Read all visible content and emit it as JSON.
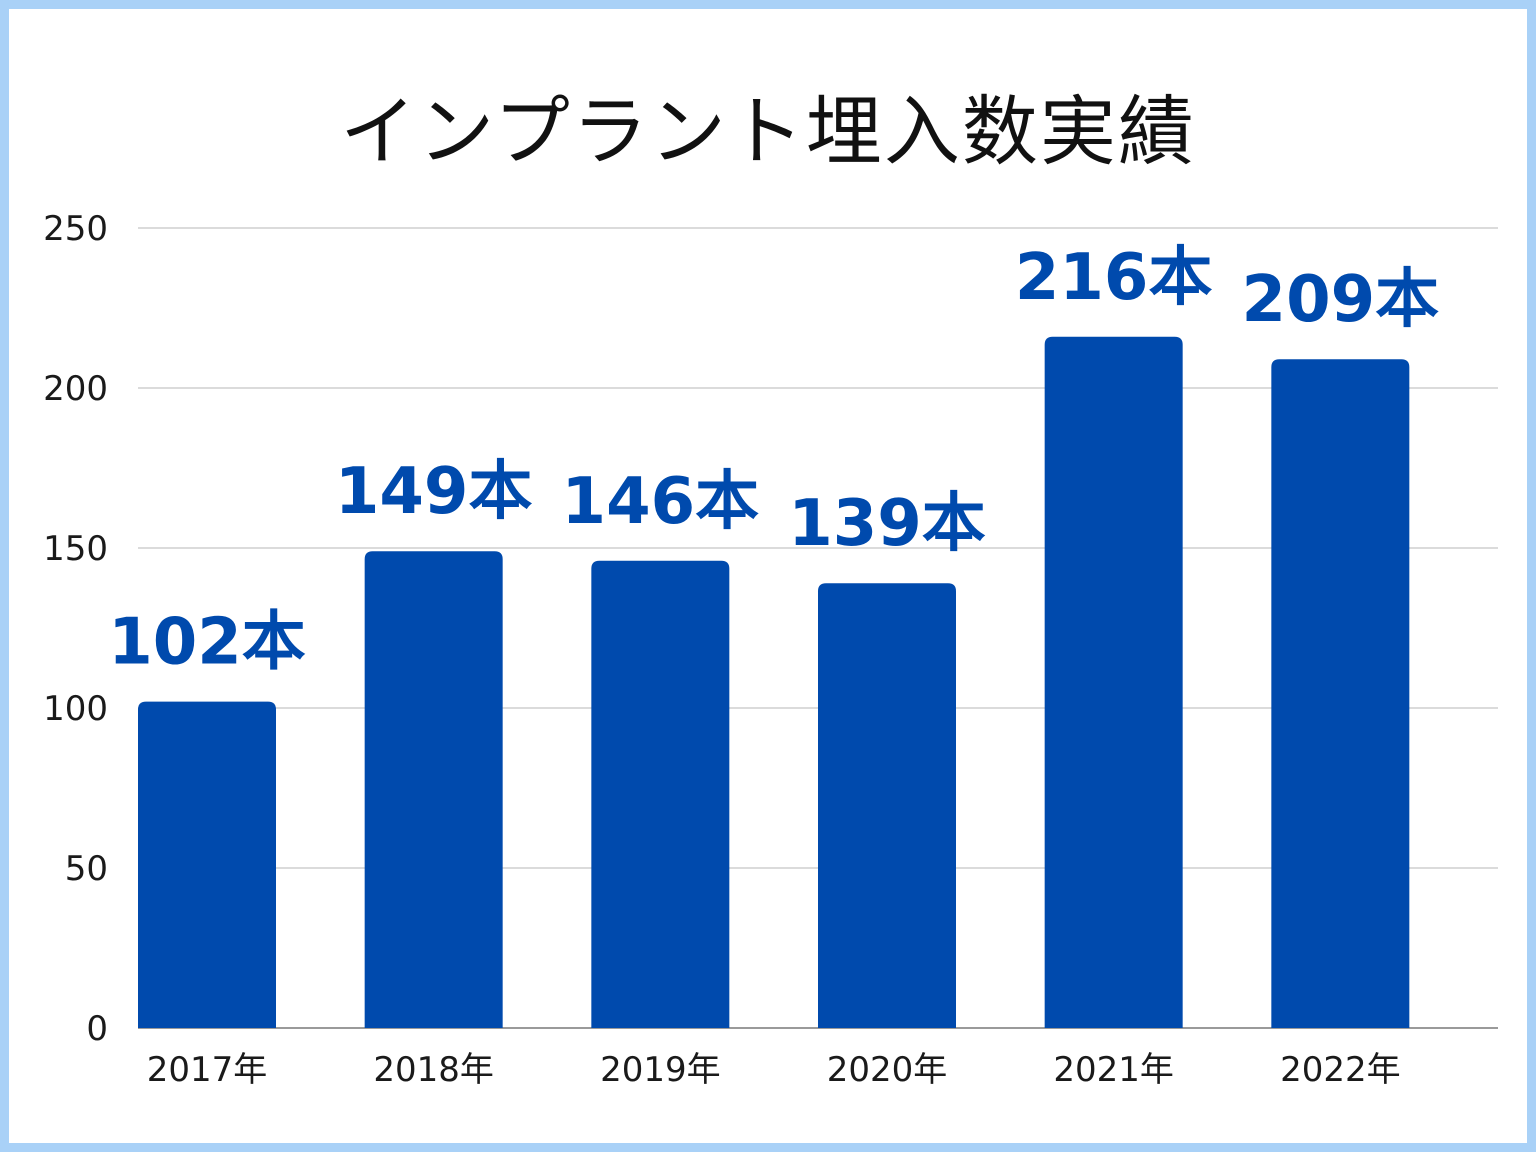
{
  "chart_data": {
    "type": "bar",
    "title": "インプラント埋入数実績",
    "categories": [
      "2017年",
      "2018年",
      "2019年",
      "2020年",
      "2021年",
      "2022年"
    ],
    "values": [
      102,
      149,
      146,
      139,
      216,
      209
    ],
    "data_labels": [
      "102本",
      "149本",
      "146本",
      "139本",
      "216本",
      "209本"
    ],
    "ylim": [
      0,
      250
    ],
    "yticks": [
      0,
      50,
      100,
      150,
      200,
      250
    ],
    "grid": true,
    "legend": "none",
    "colors": {
      "bar": "#004aad",
      "data_label": "#004aad",
      "grid": "#cfcfcf",
      "frame_border": "#a9d1f7"
    }
  }
}
